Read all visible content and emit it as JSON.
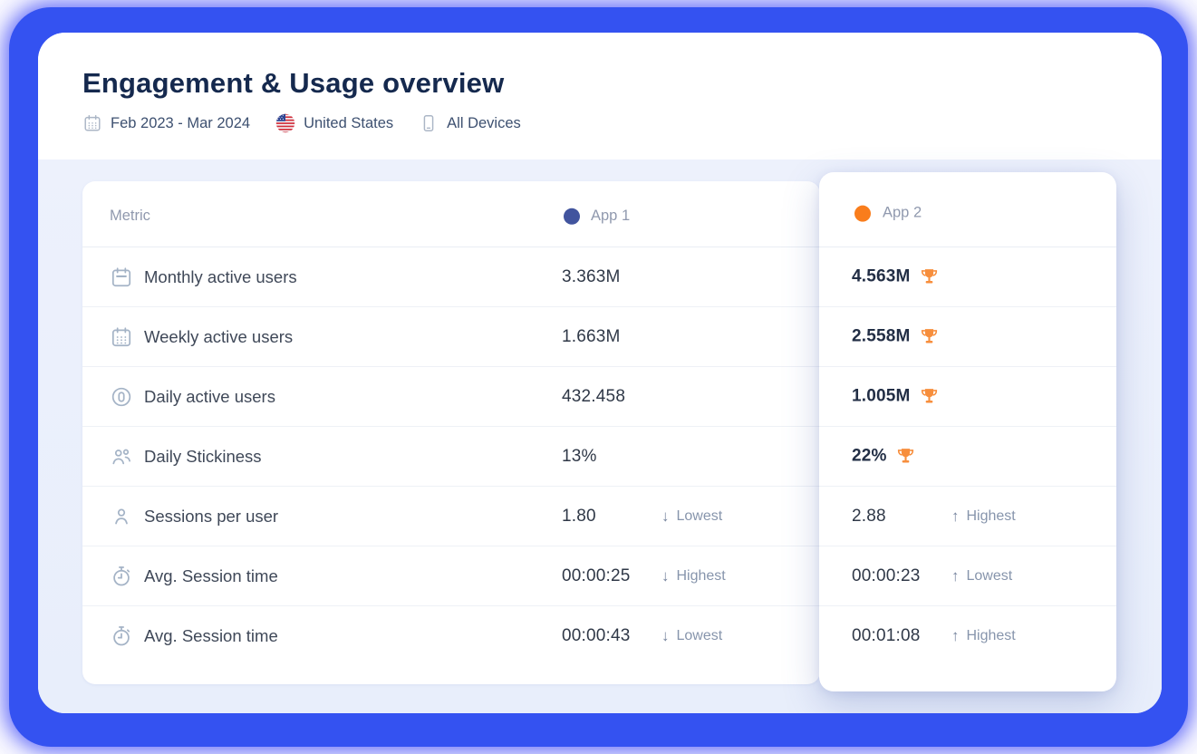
{
  "header": {
    "title": "Engagement & Usage overview",
    "meta": [
      {
        "icon": "calendar-icon",
        "label": "Feb 2023 - Mar 2024"
      },
      {
        "icon": "us-flag-icon",
        "label": "United States"
      },
      {
        "icon": "mobile-device-icon",
        "label": "All Devices"
      }
    ]
  },
  "table": {
    "metric_header": "Metric",
    "app1": {
      "label": "App 1",
      "color": "#41549E"
    },
    "app2": {
      "label": "App 2",
      "color": "#F97D1C"
    },
    "trophy_color": "#F78E3C",
    "rows": [
      {
        "icon": "calendar-month-icon",
        "metric": "Monthly active users",
        "app1": {
          "value": "3.363M"
        },
        "app2": {
          "value": "4.563M",
          "bold": true,
          "trophy": true
        }
      },
      {
        "icon": "calendar-week-icon",
        "metric": "Weekly active users",
        "app1": {
          "value": "1.663M"
        },
        "app2": {
          "value": "2.558M",
          "bold": true,
          "trophy": true
        }
      },
      {
        "icon": "daily-user-icon",
        "metric": "Daily active users",
        "app1": {
          "value": "432.458"
        },
        "app2": {
          "value": "1.005M",
          "bold": true,
          "trophy": true
        }
      },
      {
        "icon": "users-icon",
        "metric": "Daily Stickiness",
        "app1": {
          "value": "13%"
        },
        "app2": {
          "value": "22%",
          "bold": true,
          "trophy": true
        }
      },
      {
        "icon": "user-icon",
        "metric": "Sessions per user",
        "app1": {
          "value": "1.80",
          "badge": {
            "dir": "down",
            "label": "Lowest"
          }
        },
        "app2": {
          "value": "2.88",
          "badge": {
            "dir": "up",
            "label": "Highest"
          }
        }
      },
      {
        "icon": "stopwatch-icon",
        "metric": "Avg. Session time",
        "app1": {
          "value": "00:00:25",
          "badge": {
            "dir": "down",
            "label": "Highest"
          }
        },
        "app2": {
          "value": "00:00:23",
          "badge": {
            "dir": "up",
            "label": "Lowest"
          }
        }
      },
      {
        "icon": "stopwatch-icon",
        "metric": "Avg. Session time",
        "app1": {
          "value": "00:00:43",
          "badge": {
            "dir": "down",
            "label": "Lowest"
          }
        },
        "app2": {
          "value": "00:01:08",
          "badge": {
            "dir": "up",
            "label": "Highest"
          }
        }
      }
    ]
  }
}
